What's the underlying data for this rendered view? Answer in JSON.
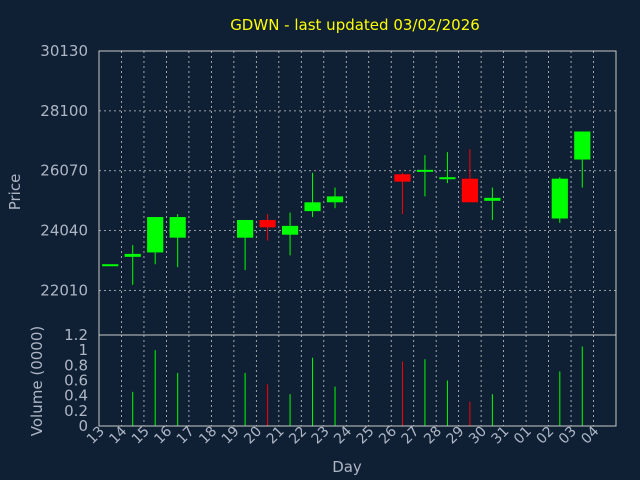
{
  "chart_data": {
    "type": "candlestick",
    "title": "GDWN - last updated 03/02/2026",
    "xlabel": "Day",
    "ylabel": "Price",
    "volume_label": "Volume (0000)",
    "price_ylim": [
      20500,
      30130
    ],
    "price_yticks": [
      "30130",
      "28100",
      "26070",
      "24040",
      "22010"
    ],
    "volume_ylim": [
      0,
      1.2
    ],
    "volume_yticks": [
      "0",
      "0.2",
      "0.4",
      "0.6",
      "0.8",
      "1",
      "1.2"
    ],
    "x_tick_labels": [
      "13",
      "14",
      "15",
      "16",
      "17",
      "18",
      "19",
      "20",
      "21",
      "22",
      "23",
      "24",
      "25",
      "26",
      "27",
      "28",
      "29",
      "30",
      "31",
      "01",
      "02",
      "03",
      "04"
    ],
    "colors": {
      "up": "#00ff00",
      "down": "#ff0000",
      "title": "#ffff00",
      "text": "#aeb6c6",
      "background": "#0f2034"
    },
    "candles": [
      {
        "x": "13",
        "open": 22900,
        "high": 22900,
        "low": 22900,
        "close": 22900,
        "volume": 0
      },
      {
        "x": "14",
        "open": 23150,
        "high": 23550,
        "low": 22200,
        "close": 23250,
        "volume": 0.45
      },
      {
        "x": "15",
        "open": 23300,
        "high": 24500,
        "low": 22900,
        "close": 24500,
        "volume": 1.0
      },
      {
        "x": "16",
        "open": 23800,
        "high": 24600,
        "low": 22800,
        "close": 24500,
        "volume": 0.7
      },
      {
        "x": "19",
        "open": 23800,
        "high": 24400,
        "low": 22700,
        "close": 24400,
        "volume": 0.7
      },
      {
        "x": "20",
        "open": 24400,
        "high": 24600,
        "low": 23700,
        "close": 24150,
        "volume": 0.55
      },
      {
        "x": "21",
        "open": 23900,
        "high": 24650,
        "low": 23200,
        "close": 24200,
        "volume": 0.42
      },
      {
        "x": "22",
        "open": 24700,
        "high": 26000,
        "low": 24500,
        "close": 25000,
        "volume": 0.9
      },
      {
        "x": "23",
        "open": 25000,
        "high": 25500,
        "low": 24800,
        "close": 25200,
        "volume": 0.52
      },
      {
        "x": "26",
        "open": 25950,
        "high": 26000,
        "low": 24600,
        "close": 25700,
        "volume": 0.85
      },
      {
        "x": "27",
        "open": 26050,
        "high": 26600,
        "low": 25200,
        "close": 26100,
        "volume": 0.88
      },
      {
        "x": "28",
        "open": 25800,
        "high": 26700,
        "low": 25650,
        "close": 25850,
        "volume": 0.6
      },
      {
        "x": "29",
        "open": 25800,
        "high": 26800,
        "low": 25000,
        "close": 25000,
        "volume": 0.32
      },
      {
        "x": "30",
        "open": 25050,
        "high": 25500,
        "low": 24400,
        "close": 25150,
        "volume": 0.42
      },
      {
        "x": "02",
        "open": 24450,
        "high": 25850,
        "low": 24300,
        "close": 25800,
        "volume": 0.72
      },
      {
        "x": "03",
        "open": 26450,
        "high": 27400,
        "low": 25500,
        "close": 27400,
        "volume": 1.05
      }
    ]
  }
}
